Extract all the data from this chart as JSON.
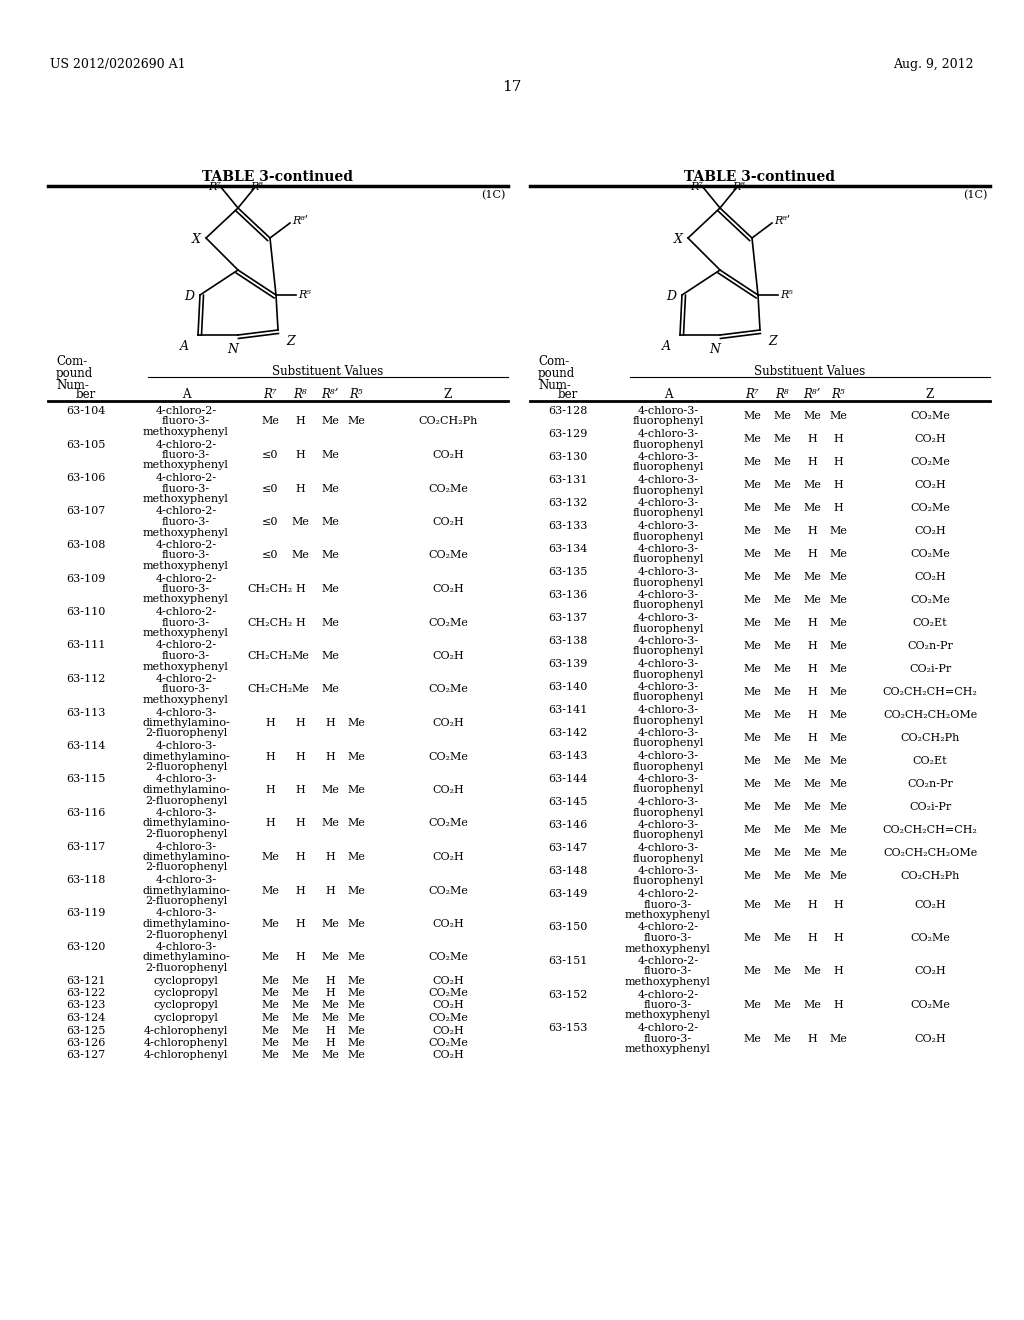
{
  "page_header_left": "US 2012/0202690 A1",
  "page_header_right": "Aug. 9, 2012",
  "page_number": "17",
  "table_title": "TABLE 3-continued",
  "compound_label": "(1C)",
  "substituent_values_label": "Substituent Values",
  "left_table": [
    [
      "63-104",
      "4-chloro-2-\nfluoro-3-\nmethoxyphenyl",
      "Me",
      "H",
      "Me",
      "Me",
      "CO₂CH₂Ph"
    ],
    [
      "63-105",
      "4-chloro-2-\nfluoro-3-\nmethoxyphenyl",
      "≤0",
      "H",
      "Me",
      "",
      "CO₂H"
    ],
    [
      "63-106",
      "4-chloro-2-\nfluoro-3-\nmethoxyphenyl",
      "≤0",
      "H",
      "Me",
      "",
      "CO₂Me"
    ],
    [
      "63-107",
      "4-chloro-2-\nfluoro-3-\nmethoxyphenyl",
      "≤0",
      "Me",
      "Me",
      "",
      "CO₂H"
    ],
    [
      "63-108",
      "4-chloro-2-\nfluoro-3-\nmethoxyphenyl",
      "≤0",
      "Me",
      "Me",
      "",
      "CO₂Me"
    ],
    [
      "63-109",
      "4-chloro-2-\nfluoro-3-\nmethoxyphenyl",
      "CH₂CH₂",
      "H",
      "Me",
      "",
      "CO₂H"
    ],
    [
      "63-110",
      "4-chloro-2-\nfluoro-3-\nmethoxyphenyl",
      "CH₂CH₂",
      "H",
      "Me",
      "",
      "CO₂Me"
    ],
    [
      "63-111",
      "4-chloro-2-\nfluoro-3-\nmethoxyphenyl",
      "CH₂CH₂",
      "Me",
      "Me",
      "",
      "CO₂H"
    ],
    [
      "63-112",
      "4-chloro-2-\nfluoro-3-\nmethoxyphenyl",
      "CH₂CH₂",
      "Me",
      "Me",
      "",
      "CO₂Me"
    ],
    [
      "63-113",
      "4-chloro-3-\ndimethylamino-\n2-fluorophenyl",
      "H",
      "H",
      "H",
      "Me",
      "CO₂H"
    ],
    [
      "63-114",
      "4-chloro-3-\ndimethylamino-\n2-fluorophenyl",
      "H",
      "H",
      "H",
      "Me",
      "CO₂Me"
    ],
    [
      "63-115",
      "4-chloro-3-\ndimethylamino-\n2-fluorophenyl",
      "H",
      "H",
      "Me",
      "Me",
      "CO₂H"
    ],
    [
      "63-116",
      "4-chloro-3-\ndimethylamino-\n2-fluorophenyl",
      "H",
      "H",
      "Me",
      "Me",
      "CO₂Me"
    ],
    [
      "63-117",
      "4-chloro-3-\ndimethylamino-\n2-fluorophenyl",
      "Me",
      "H",
      "H",
      "Me",
      "CO₂H"
    ],
    [
      "63-118",
      "4-chloro-3-\ndimethylamino-\n2-fluorophenyl",
      "Me",
      "H",
      "H",
      "Me",
      "CO₂Me"
    ],
    [
      "63-119",
      "4-chloro-3-\ndimethylamino-\n2-fluorophenyl",
      "Me",
      "H",
      "Me",
      "Me",
      "CO₂H"
    ],
    [
      "63-120",
      "4-chloro-3-\ndimethylamino-\n2-fluorophenyl",
      "Me",
      "H",
      "Me",
      "Me",
      "CO₂Me"
    ],
    [
      "63-121",
      "cyclopropyl",
      "Me",
      "Me",
      "H",
      "Me",
      "CO₂H"
    ],
    [
      "63-122",
      "cyclopropyl",
      "Me",
      "Me",
      "H",
      "Me",
      "CO₂Me"
    ],
    [
      "63-123",
      "cyclopropyl",
      "Me",
      "Me",
      "Me",
      "Me",
      "CO₂H"
    ],
    [
      "63-124",
      "cyclopropyl",
      "Me",
      "Me",
      "Me",
      "Me",
      "CO₂Me"
    ],
    [
      "63-125",
      "4-chlorophenyl",
      "Me",
      "Me",
      "H",
      "Me",
      "CO₂H"
    ],
    [
      "63-126",
      "4-chlorophenyl",
      "Me",
      "Me",
      "H",
      "Me",
      "CO₂Me"
    ],
    [
      "63-127",
      "4-chlorophenyl",
      "Me",
      "Me",
      "Me",
      "Me",
      "CO₂H"
    ]
  ],
  "right_table": [
    [
      "63-128",
      "4-chloro-3-\nfluorophenyl",
      "Me",
      "Me",
      "Me",
      "Me",
      "CO₂Me"
    ],
    [
      "63-129",
      "4-chloro-3-\nfluorophenyl",
      "Me",
      "Me",
      "H",
      "H",
      "CO₂H"
    ],
    [
      "63-130",
      "4-chloro-3-\nfluorophenyl",
      "Me",
      "Me",
      "H",
      "H",
      "CO₂Me"
    ],
    [
      "63-131",
      "4-chloro-3-\nfluorophenyl",
      "Me",
      "Me",
      "Me",
      "H",
      "CO₂H"
    ],
    [
      "63-132",
      "4-chloro-3-\nfluorophenyl",
      "Me",
      "Me",
      "Me",
      "H",
      "CO₂Me"
    ],
    [
      "63-133",
      "4-chloro-3-\nfluorophenyl",
      "Me",
      "Me",
      "H",
      "Me",
      "CO₂H"
    ],
    [
      "63-134",
      "4-chloro-3-\nfluorophenyl",
      "Me",
      "Me",
      "H",
      "Me",
      "CO₂Me"
    ],
    [
      "63-135",
      "4-chloro-3-\nfluorophenyl",
      "Me",
      "Me",
      "Me",
      "Me",
      "CO₂H"
    ],
    [
      "63-136",
      "4-chloro-3-\nfluorophenyl",
      "Me",
      "Me",
      "Me",
      "Me",
      "CO₂Me"
    ],
    [
      "63-137",
      "4-chloro-3-\nfluorophenyl",
      "Me",
      "Me",
      "H",
      "Me",
      "CO₂Et"
    ],
    [
      "63-138",
      "4-chloro-3-\nfluorophenyl",
      "Me",
      "Me",
      "H",
      "Me",
      "CO₂n-Pr"
    ],
    [
      "63-139",
      "4-chloro-3-\nfluorophenyl",
      "Me",
      "Me",
      "H",
      "Me",
      "CO₂i-Pr"
    ],
    [
      "63-140",
      "4-chloro-3-\nfluorophenyl",
      "Me",
      "Me",
      "H",
      "Me",
      "CO₂CH₂CH=CH₂"
    ],
    [
      "63-141",
      "4-chloro-3-\nfluorophenyl",
      "Me",
      "Me",
      "H",
      "Me",
      "CO₂CH₂CH₂OMe"
    ],
    [
      "63-142",
      "4-chloro-3-\nfluorophenyl",
      "Me",
      "Me",
      "H",
      "Me",
      "CO₂CH₂Ph"
    ],
    [
      "63-143",
      "4-chloro-3-\nfluorophenyl",
      "Me",
      "Me",
      "Me",
      "Me",
      "CO₂Et"
    ],
    [
      "63-144",
      "4-chloro-3-\nfluorophenyl",
      "Me",
      "Me",
      "Me",
      "Me",
      "CO₂n-Pr"
    ],
    [
      "63-145",
      "4-chloro-3-\nfluorophenyl",
      "Me",
      "Me",
      "Me",
      "Me",
      "CO₂i-Pr"
    ],
    [
      "63-146",
      "4-chloro-3-\nfluorophenyl",
      "Me",
      "Me",
      "Me",
      "Me",
      "CO₂CH₂CH=CH₂"
    ],
    [
      "63-147",
      "4-chloro-3-\nfluorophenyl",
      "Me",
      "Me",
      "Me",
      "Me",
      "CO₂CH₂CH₂OMe"
    ],
    [
      "63-148",
      "4-chloro-3-\nfluorophenyl",
      "Me",
      "Me",
      "Me",
      "Me",
      "CO₂CH₂Ph"
    ],
    [
      "63-149",
      "4-chloro-2-\nfluoro-3-\nmethoxyphenyl",
      "Me",
      "Me",
      "H",
      "H",
      "CO₂H"
    ],
    [
      "63-150",
      "4-chloro-2-\nfluoro-3-\nmethoxyphenyl",
      "Me",
      "Me",
      "H",
      "H",
      "CO₂Me"
    ],
    [
      "63-151",
      "4-chloro-2-\nfluoro-3-\nmethoxyphenyl",
      "Me",
      "Me",
      "Me",
      "H",
      "CO₂H"
    ],
    [
      "63-152",
      "4-chloro-2-\nfluoro-3-\nmethoxyphenyl",
      "Me",
      "Me",
      "Me",
      "H",
      "CO₂Me"
    ],
    [
      "63-153",
      "4-chloro-2-\nfluoro-3-\nmethoxyphenyl",
      "Me",
      "Me",
      "H",
      "Me",
      "CO₂H"
    ]
  ],
  "background_color": "#ffffff"
}
